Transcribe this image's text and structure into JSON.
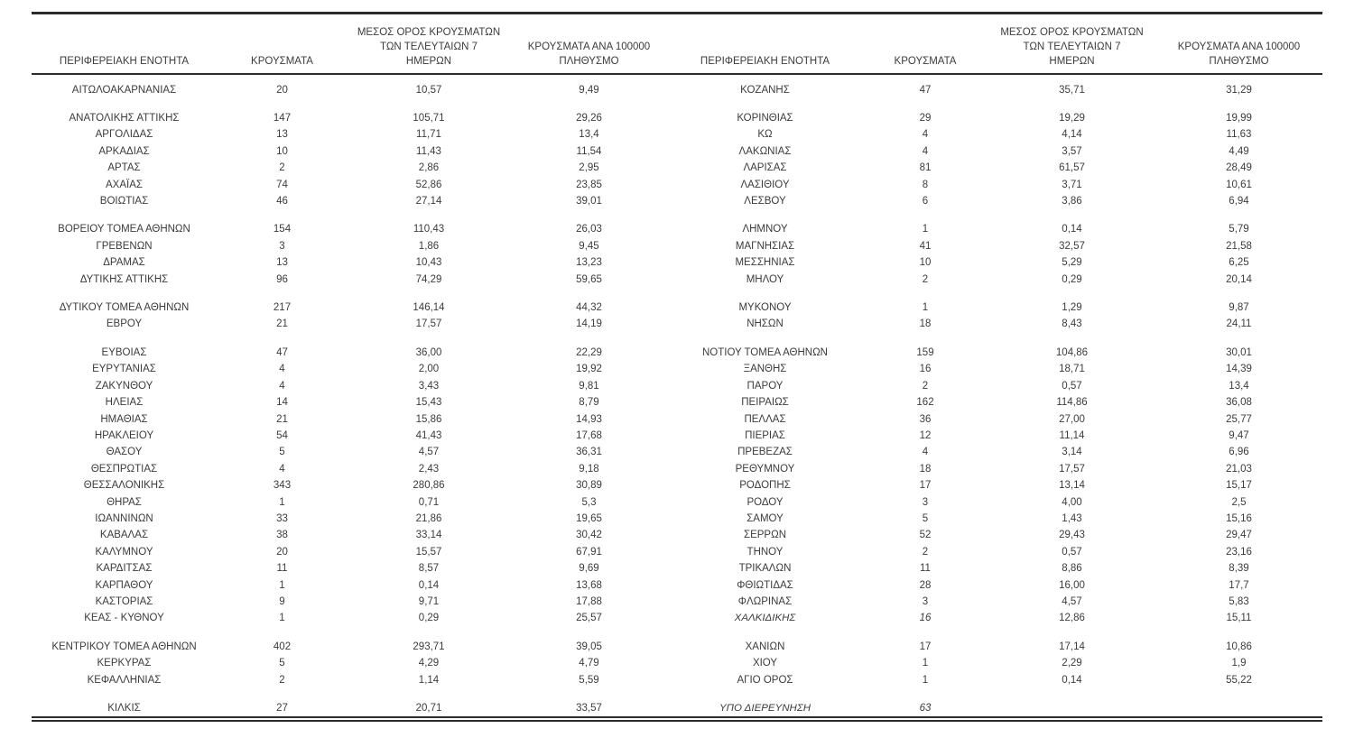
{
  "page": {
    "background": "#ffffff",
    "text_color": "#3c3c3c",
    "line_color": "#2b2b2b",
    "description": "Greek regional units COVID-19 daily case table, two panels side by side"
  },
  "headers": {
    "region": "ΠΕΡΙΦΕΡΕΙΑΚΗ ΕΝΟΤΗΤΑ",
    "cases": "ΚΡΟΥΣΜΑΤΑ",
    "avg7": "ΜΕΣΟΣ ΟΡΟΣ ΚΡΟΥΣΜΑΤΩΝ\nΤΩΝ ΤΕΛΕΥΤΑΙΩΝ 7\nΗΜΕΡΩΝ",
    "per100k": "ΚΡΟΥΣΜΑΤΑ ΑΝΑ 100000\nΠΛΗΘΥΣΜΟ"
  },
  "rows": [
    {
      "left": [
        "ΑΙΤΩΛΟΑΚΑΡΝΑΝΙΑΣ",
        "20",
        "10,57",
        "9,49"
      ],
      "right": [
        "ΚΟΖΑΝΗΣ",
        "47",
        "35,71",
        "31,29"
      ],
      "gap_after": true
    },
    {
      "left": [
        "ΑΝΑΤΟΛΙΚΗΣ ΑΤΤΙΚΗΣ",
        "147",
        "105,71",
        "29,26"
      ],
      "right": [
        "ΚΟΡΙΝΘΙΑΣ",
        "29",
        "19,29",
        "19,99"
      ]
    },
    {
      "left": [
        "ΑΡΓΟΛΙΔΑΣ",
        "13",
        "11,71",
        "13,4"
      ],
      "right": [
        "ΚΩ",
        "4",
        "4,14",
        "11,63"
      ]
    },
    {
      "left": [
        "ΑΡΚΑΔΙΑΣ",
        "10",
        "11,43",
        "11,54"
      ],
      "right": [
        "ΛΑΚΩΝΙΑΣ",
        "4",
        "3,57",
        "4,49"
      ]
    },
    {
      "left": [
        "ΑΡΤΑΣ",
        "2",
        "2,86",
        "2,95"
      ],
      "right": [
        "ΛΑΡΙΣΑΣ",
        "81",
        "61,57",
        "28,49"
      ]
    },
    {
      "left": [
        "ΑΧΑΪΑΣ",
        "74",
        "52,86",
        "23,85"
      ],
      "right": [
        "ΛΑΣΙΘΙΟΥ",
        "8",
        "3,71",
        "10,61"
      ]
    },
    {
      "left": [
        "ΒΟΙΩΤΙΑΣ",
        "46",
        "27,14",
        "39,01"
      ],
      "right": [
        "ΛΕΣΒΟΥ",
        "6",
        "3,86",
        "6,94"
      ],
      "gap_after": true
    },
    {
      "left": [
        "ΒΟΡΕΙΟΥ ΤΟΜΕΑ ΑΘΗΝΩΝ",
        "154",
        "110,43",
        "26,03"
      ],
      "right": [
        "ΛΗΜΝΟΥ",
        "1",
        "0,14",
        "5,79"
      ]
    },
    {
      "left": [
        "ΓΡΕΒΕΝΩΝ",
        "3",
        "1,86",
        "9,45"
      ],
      "right": [
        "ΜΑΓΝΗΣΙΑΣ",
        "41",
        "32,57",
        "21,58"
      ]
    },
    {
      "left": [
        "ΔΡΑΜΑΣ",
        "13",
        "10,43",
        "13,23"
      ],
      "right": [
        "ΜΕΣΣΗΝΙΑΣ",
        "10",
        "5,29",
        "6,25"
      ]
    },
    {
      "left": [
        "ΔΥΤΙΚΗΣ ΑΤΤΙΚΗΣ",
        "96",
        "74,29",
        "59,65"
      ],
      "right": [
        "ΜΗΛΟΥ",
        "2",
        "0,29",
        "20,14"
      ],
      "gap_after": true
    },
    {
      "left": [
        "ΔΥΤΙΚΟΥ ΤΟΜΕΑ ΑΘΗΝΩΝ",
        "217",
        "146,14",
        "44,32"
      ],
      "right": [
        "ΜΥΚΟΝΟΥ",
        "1",
        "1,29",
        "9,87"
      ]
    },
    {
      "left": [
        "ΕΒΡΟΥ",
        "21",
        "17,57",
        "14,19"
      ],
      "right": [
        "ΝΗΣΩΝ",
        "18",
        "8,43",
        "24,11"
      ],
      "gap_after": true
    },
    {
      "left": [
        "ΕΥΒΟΙΑΣ",
        "47",
        "36,00",
        "22,29"
      ],
      "right": [
        "ΝΟΤΙΟΥ ΤΟΜΕΑ ΑΘΗΝΩΝ",
        "159",
        "104,86",
        "30,01"
      ]
    },
    {
      "left": [
        "ΕΥΡΥΤΑΝΙΑΣ",
        "4",
        "2,00",
        "19,92"
      ],
      "right": [
        "ΞΑΝΘΗΣ",
        "16",
        "18,71",
        "14,39"
      ]
    },
    {
      "left": [
        "ΖΑΚΥΝΘΟΥ",
        "4",
        "3,43",
        "9,81"
      ],
      "right": [
        "ΠΑΡΟΥ",
        "2",
        "0,57",
        "13,4"
      ]
    },
    {
      "left": [
        "ΗΛΕΙΑΣ",
        "14",
        "15,43",
        "8,79"
      ],
      "right": [
        "ΠΕΙΡΑΙΩΣ",
        "162",
        "114,86",
        "36,08"
      ]
    },
    {
      "left": [
        "ΗΜΑΘΙΑΣ",
        "21",
        "15,86",
        "14,93"
      ],
      "right": [
        "ΠΕΛΛΑΣ",
        "36",
        "27,00",
        "25,77"
      ]
    },
    {
      "left": [
        "ΗΡΑΚΛΕΙΟΥ",
        "54",
        "41,43",
        "17,68"
      ],
      "right": [
        "ΠΙΕΡΙΑΣ",
        "12",
        "11,14",
        "9,47"
      ]
    },
    {
      "left": [
        "ΘΑΣΟΥ",
        "5",
        "4,57",
        "36,31"
      ],
      "right": [
        "ΠΡΕΒΕΖΑΣ",
        "4",
        "3,14",
        "6,96"
      ]
    },
    {
      "left": [
        "ΘΕΣΠΡΩΤΙΑΣ",
        "4",
        "2,43",
        "9,18"
      ],
      "right": [
        "ΡΕΘΥΜΝΟΥ",
        "18",
        "17,57",
        "21,03"
      ]
    },
    {
      "left": [
        "ΘΕΣΣΑΛΟΝΙΚΗΣ",
        "343",
        "280,86",
        "30,89"
      ],
      "right": [
        "ΡΟΔΟΠΗΣ",
        "17",
        "13,14",
        "15,17"
      ]
    },
    {
      "left": [
        "ΘΗΡΑΣ",
        "1",
        "0,71",
        "5,3"
      ],
      "right": [
        "ΡΟΔΟΥ",
        "3",
        "4,00",
        "2,5"
      ]
    },
    {
      "left": [
        "ΙΩΑΝΝΙΝΩΝ",
        "33",
        "21,86",
        "19,65"
      ],
      "right": [
        "ΣΑΜΟΥ",
        "5",
        "1,43",
        "15,16"
      ]
    },
    {
      "left": [
        "ΚΑΒΑΛΑΣ",
        "38",
        "33,14",
        "30,42"
      ],
      "right": [
        "ΣΕΡΡΩΝ",
        "52",
        "29,43",
        "29,47"
      ]
    },
    {
      "left": [
        "ΚΑΛΥΜΝΟΥ",
        "20",
        "15,57",
        "67,91"
      ],
      "right": [
        "ΤΗΝΟΥ",
        "2",
        "0,57",
        "23,16"
      ]
    },
    {
      "left": [
        "ΚΑΡΔΙΤΣΑΣ",
        "11",
        "8,57",
        "9,69"
      ],
      "right": [
        "ΤΡΙΚΑΛΩΝ",
        "11",
        "8,86",
        "8,39"
      ]
    },
    {
      "left": [
        "ΚΑΡΠΑΘΟΥ",
        "1",
        "0,14",
        "13,68"
      ],
      "right": [
        "ΦΘΙΩΤΙΔΑΣ",
        "28",
        "16,00",
        "17,7"
      ]
    },
    {
      "left": [
        "ΚΑΣΤΟΡΙΑΣ",
        "9",
        "9,71",
        "17,88"
      ],
      "right": [
        "ΦΛΩΡΙΝΑΣ",
        "3",
        "4,57",
        "5,83"
      ]
    },
    {
      "left": [
        "ΚΕΑΣ - ΚΥΘΝΟΥ",
        "1",
        "0,29",
        "25,57"
      ],
      "right": [
        "ΧΑΛΚΙΔΙΚΗΣ",
        "16",
        "12,86",
        "15,11"
      ],
      "right_italic": true,
      "gap_after": true
    },
    {
      "left": [
        "ΚΕΝΤΡΙΚΟΥ ΤΟΜΕΑ ΑΘΗΝΩΝ",
        "402",
        "293,71",
        "39,05"
      ],
      "right": [
        "ΧΑΝΙΩΝ",
        "17",
        "17,14",
        "10,86"
      ]
    },
    {
      "left": [
        "ΚΕΡΚΥΡΑΣ",
        "5",
        "4,29",
        "4,79"
      ],
      "right": [
        "ΧΙΟΥ",
        "1",
        "2,29",
        "1,9"
      ]
    },
    {
      "left": [
        "ΚΕΦΑΛΛΗΝΙΑΣ",
        "2",
        "1,14",
        "5,59"
      ],
      "right": [
        "ΑΓΙΟ ΟΡΟΣ",
        "1",
        "0,14",
        "55,22"
      ],
      "gap_after": true
    },
    {
      "left": [
        "ΚΙΛΚΙΣ",
        "27",
        "20,71",
        "33,57"
      ],
      "right": [
        "ΥΠΟ ΔΙΕΡΕΥΝΗΣΗ",
        "63",
        "",
        ""
      ],
      "right_italic": true
    }
  ]
}
